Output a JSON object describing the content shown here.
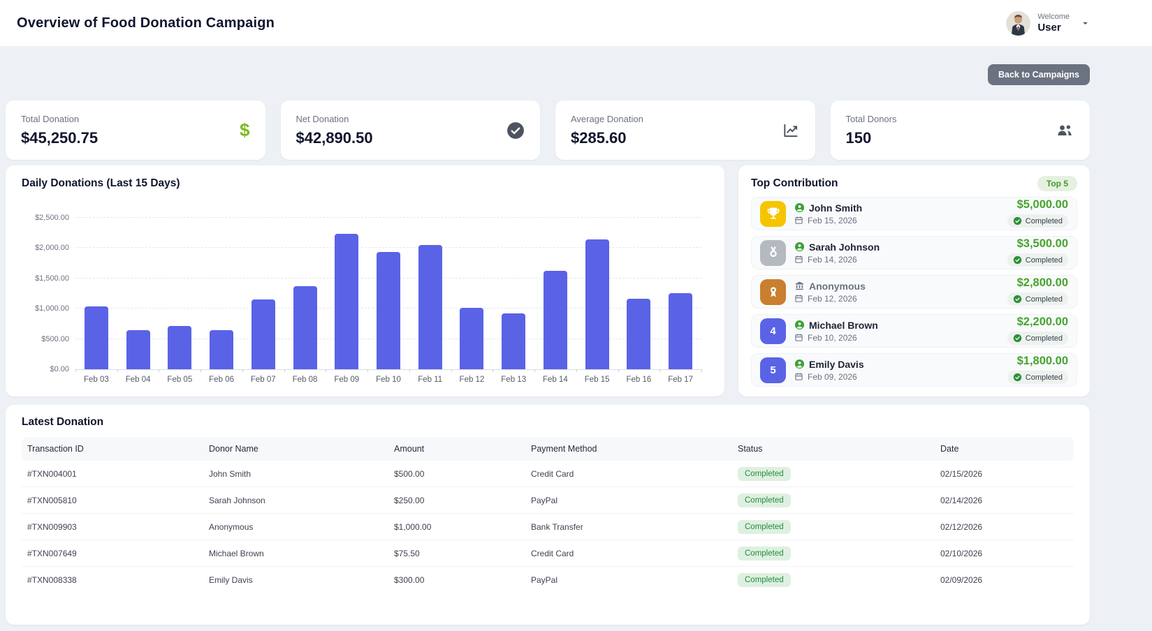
{
  "header": {
    "title": "Overview of Food Donation Campaign",
    "welcome_label": "Welcome",
    "user_name": "User"
  },
  "toolbar": {
    "back_label": "Back to Campaigns"
  },
  "stats": [
    {
      "label": "Total Donation",
      "value": "$45,250.75",
      "icon": "dollar-icon"
    },
    {
      "label": "Net Donation",
      "value": "$42,890.50",
      "icon": "check-circle-icon"
    },
    {
      "label": "Average Donation",
      "value": "$285.60",
      "icon": "chart-line-icon"
    },
    {
      "label": "Total Donors",
      "value": "150",
      "icon": "users-icon"
    }
  ],
  "chart_data": {
    "type": "bar",
    "title": "Daily Donations (Last 15 Days)",
    "categories": [
      "Feb 03",
      "Feb 04",
      "Feb 05",
      "Feb 06",
      "Feb 07",
      "Feb 08",
      "Feb 09",
      "Feb 10",
      "Feb 11",
      "Feb 12",
      "Feb 13",
      "Feb 14",
      "Feb 15",
      "Feb 16",
      "Feb 17"
    ],
    "values": [
      1040,
      640,
      710,
      650,
      1150,
      1370,
      2230,
      1930,
      2050,
      1010,
      920,
      1630,
      2140,
      1160,
      1260
    ],
    "xlabel": "",
    "ylabel": "",
    "ylim": [
      0,
      2500
    ],
    "y_tick_labels": [
      "$0.00",
      "$500.00",
      "$1,000.00",
      "$1,500.00",
      "$2,000.00",
      "$2,500.00"
    ],
    "grid": "horizontal-dashed",
    "legend": "none",
    "bar_color": "#5a63e6"
  },
  "top_contribution": {
    "title": "Top Contribution",
    "badge": "Top 5",
    "items": [
      {
        "rank": 1,
        "rank_badge": "trophy",
        "name": "John Smith",
        "anonymous": false,
        "date": "Feb 15, 2026",
        "amount": "$5,000.00",
        "status": "Completed"
      },
      {
        "rank": 2,
        "rank_badge": "medal",
        "name": "Sarah Johnson",
        "anonymous": false,
        "date": "Feb 14, 2026",
        "amount": "$3,500.00",
        "status": "Completed"
      },
      {
        "rank": 3,
        "rank_badge": "award",
        "name": "Anonymous",
        "anonymous": true,
        "date": "Feb 12, 2026",
        "amount": "$2,800.00",
        "status": "Completed"
      },
      {
        "rank": 4,
        "rank_badge": "number",
        "name": "Michael Brown",
        "anonymous": false,
        "date": "Feb 10, 2026",
        "amount": "$2,200.00",
        "status": "Completed"
      },
      {
        "rank": 5,
        "rank_badge": "number",
        "name": "Emily Davis",
        "anonymous": false,
        "date": "Feb 09, 2026",
        "amount": "$1,800.00",
        "status": "Completed"
      }
    ]
  },
  "latest_donation": {
    "title": "Latest Donation",
    "columns": [
      "Transaction ID",
      "Donor Name",
      "Amount",
      "Payment Method",
      "Status",
      "Date"
    ],
    "rows": [
      {
        "transaction_id": "#TXN004001",
        "donor_name": "John Smith",
        "amount": "$500.00",
        "payment_method": "Credit Card",
        "status": "Completed",
        "date": "02/15/2026"
      },
      {
        "transaction_id": "#TXN005810",
        "donor_name": "Sarah Johnson",
        "amount": "$250.00",
        "payment_method": "PayPal",
        "status": "Completed",
        "date": "02/14/2026"
      },
      {
        "transaction_id": "#TXN009903",
        "donor_name": "Anonymous",
        "amount": "$1,000.00",
        "payment_method": "Bank Transfer",
        "status": "Completed",
        "date": "02/12/2026"
      },
      {
        "transaction_id": "#TXN007649",
        "donor_name": "Michael Brown",
        "amount": "$75.50",
        "payment_method": "Credit Card",
        "status": "Completed",
        "date": "02/10/2026"
      },
      {
        "transaction_id": "#TXN008338",
        "donor_name": "Emily Davis",
        "amount": "$300.00",
        "payment_method": "PayPal",
        "status": "Completed",
        "date": "02/09/2026"
      }
    ]
  },
  "colors": {
    "bar_indigo": "#5a63e6",
    "amount_green": "#46a42c",
    "lime_dollar": "#7cb91e",
    "gold": "#f6c500",
    "silver": "#b5b9c0",
    "bronze": "#c97f2d",
    "status_badge_bg": "#def0e1",
    "status_badge_text": "#278a3c",
    "page_bg": "#edf0f5"
  }
}
